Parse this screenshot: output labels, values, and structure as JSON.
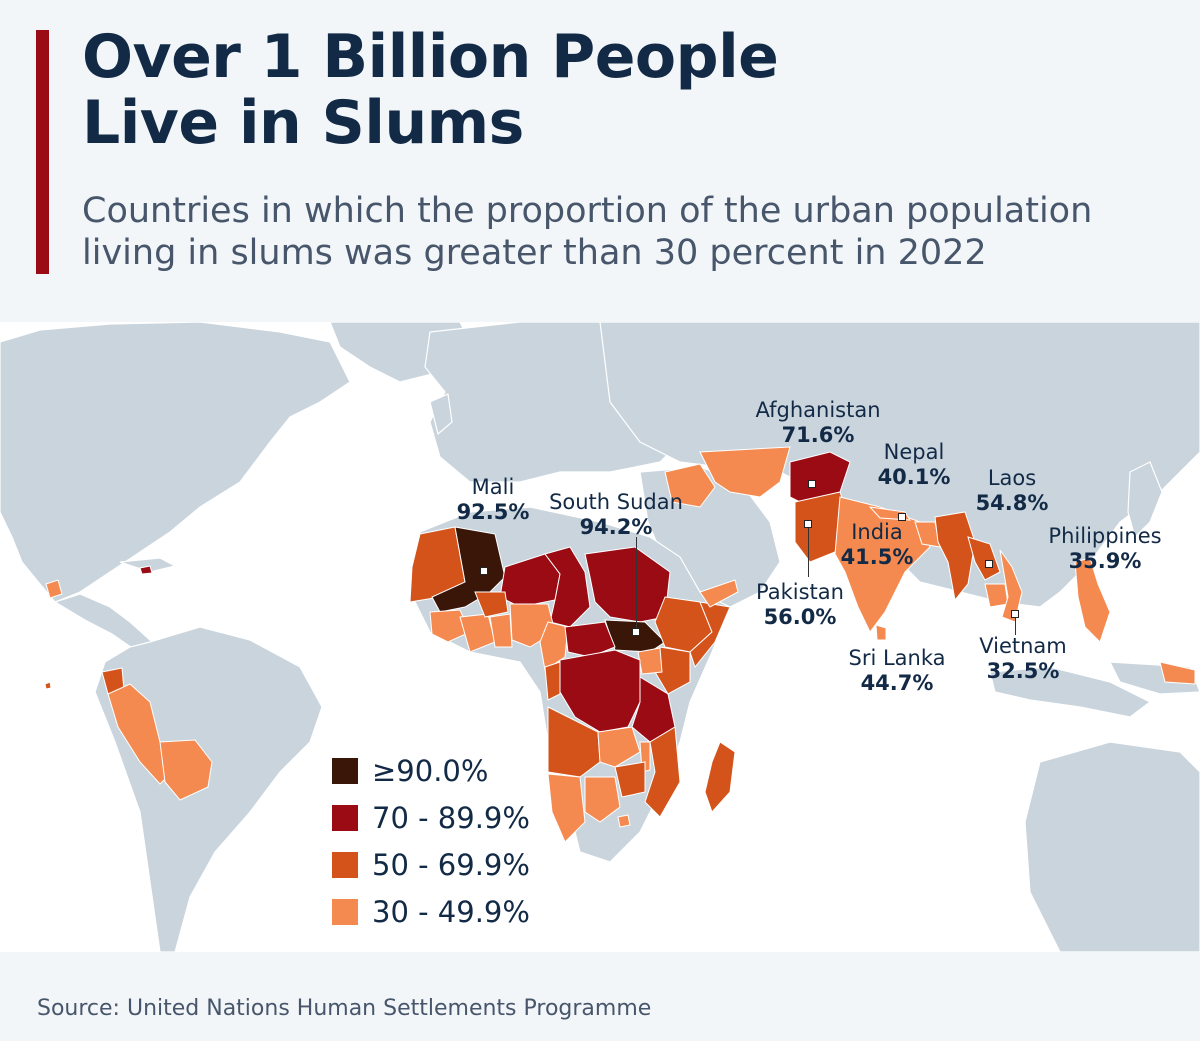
{
  "title_line1": "Over 1 Billion People",
  "title_line2": "Live in Slums",
  "subtitle_line1": "Countries in which the proportion of the urban population",
  "subtitle_line2": "living in slums was greater than 30 percent in 2022",
  "source": "Source: United Nations Human Settlements Programme",
  "colors": {
    "land": "#c9d4dd",
    "ocean": "#ffffff",
    "band_90": "#3a1608",
    "band_70": "#9b0b14",
    "band_50": "#d3531b",
    "band_30": "#f58a50",
    "accent": "#9b0b14",
    "title": "#132a46"
  },
  "legend": [
    {
      "label": "≥90.0%",
      "color": "#3a1608"
    },
    {
      "label": "70 - 89.9%",
      "color": "#9b0b14"
    },
    {
      "label": "50 - 69.9%",
      "color": "#d3531b"
    },
    {
      "label": "30 - 49.9%",
      "color": "#f58a50"
    }
  ],
  "callouts": {
    "mali": {
      "name": "Mali",
      "value": "92.5%"
    },
    "south_sudan": {
      "name": "South Sudan",
      "value": "94.2%"
    },
    "afghanistan": {
      "name": "Afghanistan",
      "value": "71.6%"
    },
    "nepal": {
      "name": "Nepal",
      "value": "40.1%"
    },
    "laos": {
      "name": "Laos",
      "value": "54.8%"
    },
    "philippines": {
      "name": "Philippines",
      "value": "35.9%"
    },
    "india": {
      "name": "India",
      "value": "41.5%"
    },
    "pakistan": {
      "name": "Pakistan",
      "value": "56.0%"
    },
    "sri_lanka": {
      "name": "Sri Lanka",
      "value": "44.7%"
    },
    "vietnam": {
      "name": "Vietnam",
      "value": "32.5%"
    }
  }
}
